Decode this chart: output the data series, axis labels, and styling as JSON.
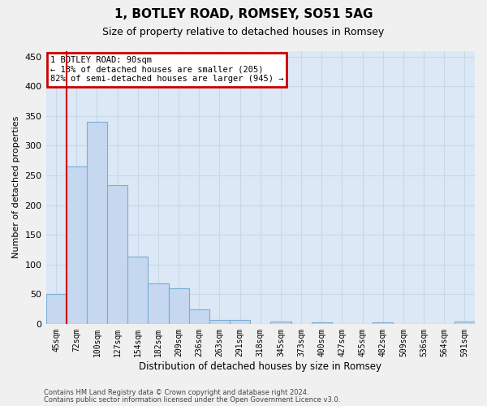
{
  "title": "1, BOTLEY ROAD, ROMSEY, SO51 5AG",
  "subtitle": "Size of property relative to detached houses in Romsey",
  "xlabel": "Distribution of detached houses by size in Romsey",
  "ylabel": "Number of detached properties",
  "categories": [
    "45sqm",
    "72sqm",
    "100sqm",
    "127sqm",
    "154sqm",
    "182sqm",
    "209sqm",
    "236sqm",
    "263sqm",
    "291sqm",
    "318sqm",
    "345sqm",
    "373sqm",
    "400sqm",
    "427sqm",
    "455sqm",
    "482sqm",
    "509sqm",
    "536sqm",
    "564sqm",
    "591sqm"
  ],
  "values": [
    50,
    265,
    340,
    233,
    113,
    68,
    60,
    25,
    7,
    6,
    0,
    4,
    0,
    3,
    0,
    0,
    3,
    0,
    0,
    0,
    4
  ],
  "bar_color": "#c5d8f0",
  "bar_edge_color": "#7aaed6",
  "vline_x": 0.5,
  "vline_color": "#cc0000",
  "ann_line1": "1 BOTLEY ROAD: 90sqm",
  "ann_line2": "← 18% of detached houses are smaller (205)",
  "ann_line3": "82% of semi-detached houses are larger (945) →",
  "ann_box_facecolor": "#ffffff",
  "ann_box_edgecolor": "#cc0000",
  "ylim": [
    0,
    460
  ],
  "yticks": [
    0,
    50,
    100,
    150,
    200,
    250,
    300,
    350,
    400,
    450
  ],
  "plot_bg": "#dce8f5",
  "fig_bg": "#f0f0f0",
  "grid_color": "#c8d8e8",
  "footer_line1": "Contains HM Land Registry data © Crown copyright and database right 2024.",
  "footer_line2": "Contains public sector information licensed under the Open Government Licence v3.0.",
  "title_fontsize": 11,
  "subtitle_fontsize": 9,
  "ylabel_fontsize": 8,
  "xlabel_fontsize": 8.5,
  "tick_fontsize": 7,
  "ann_fontsize": 7.5,
  "footer_fontsize": 6
}
